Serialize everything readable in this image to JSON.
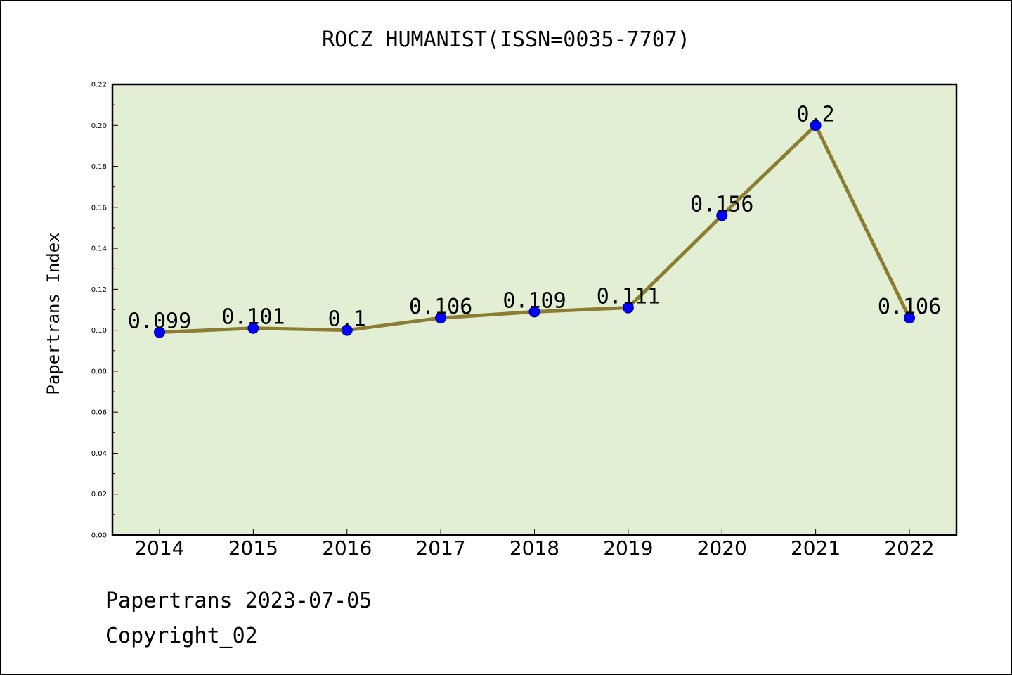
{
  "chart_data": {
    "type": "line",
    "title": "ROCZ HUMANIST(ISSN=0035-7707)",
    "xlabel": "",
    "ylabel": "Papertrans Index",
    "categories": [
      "2014",
      "2015",
      "2016",
      "2017",
      "2018",
      "2019",
      "2020",
      "2021",
      "2022"
    ],
    "values": [
      0.099,
      0.101,
      0.1,
      0.106,
      0.109,
      0.111,
      0.156,
      0.2,
      0.106
    ],
    "data_labels": [
      "0.099",
      "0.101",
      "0.1",
      "0.106",
      "0.109",
      "0.111",
      "0.156",
      "0.2",
      "0.106"
    ],
    "ylim": [
      0,
      0.22
    ],
    "yticks": [
      "0.00",
      "0.02",
      "0.04",
      "0.06",
      "0.08",
      "0.10",
      "0.12",
      "0.14",
      "0.16",
      "0.18",
      "0.20",
      "0.22"
    ],
    "grid": false,
    "legend": "none",
    "colors": {
      "plot_background": "#e2efd5",
      "line": "#8b7d32",
      "marker": "#0000ff"
    }
  },
  "footer": {
    "line1": "Papertrans 2023-07-05",
    "line2": "Copyright_02"
  }
}
